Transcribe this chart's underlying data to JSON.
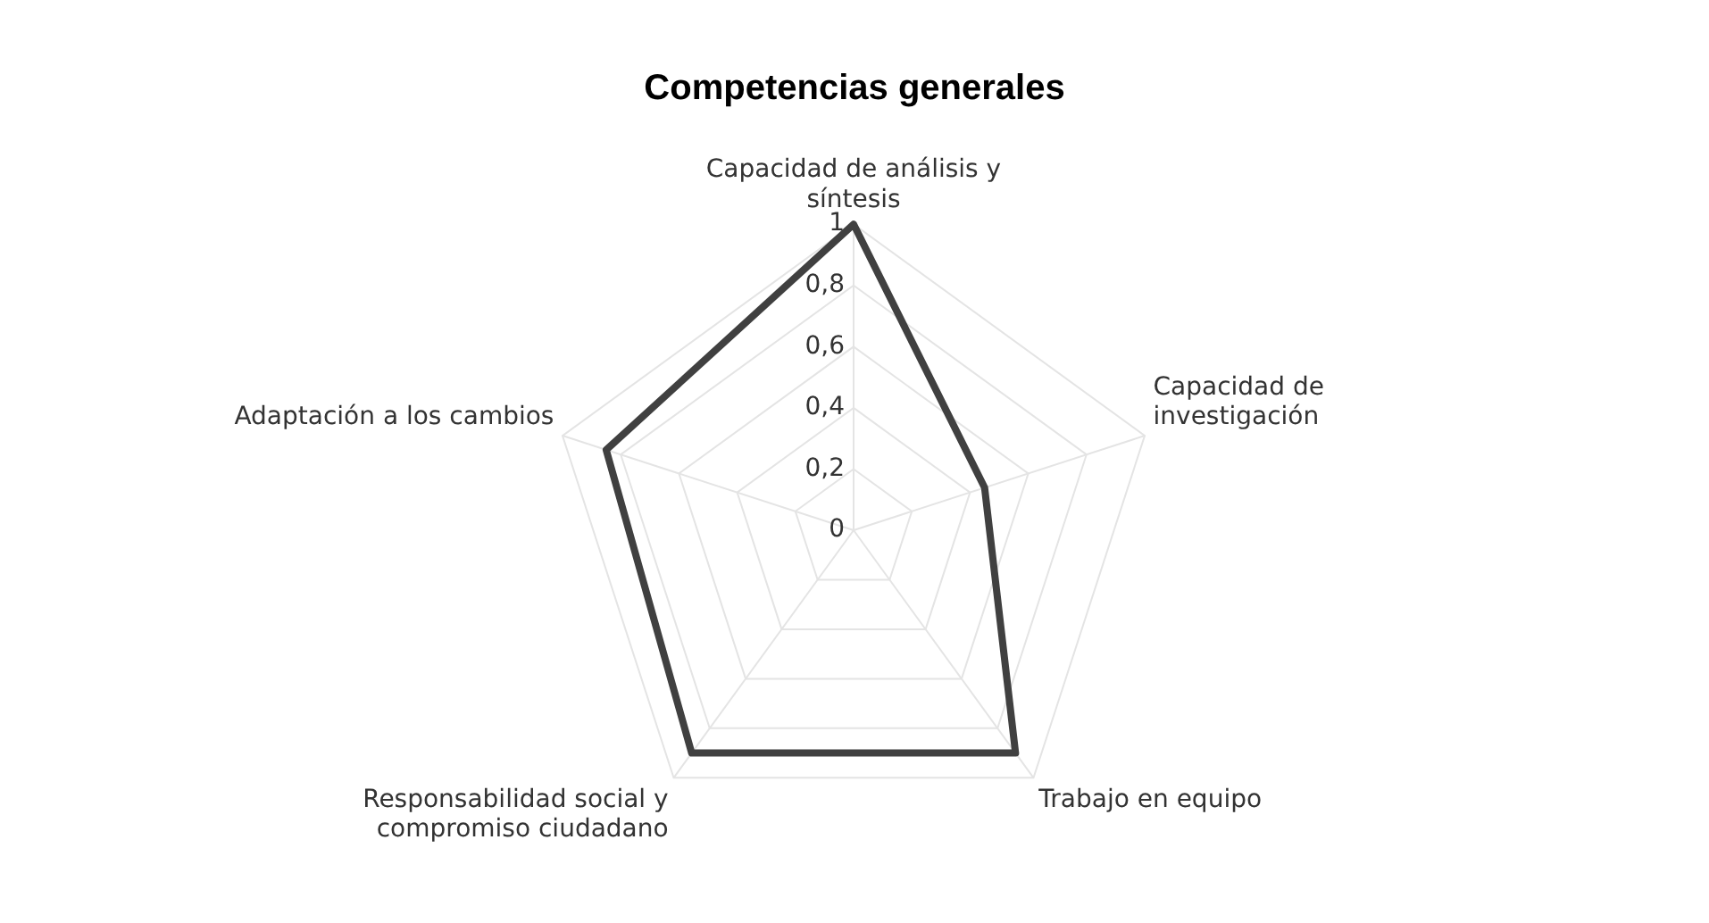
{
  "chart_data": {
    "type": "radar",
    "title": "Competencias generales",
    "categories": [
      "Capacidad de análisis y síntesis",
      "Capacidad de investigación",
      "Trabajo en equipo",
      "Responsabilidad social y compromiso ciudadano",
      "Adaptación a los cambios"
    ],
    "series": [
      {
        "color": "#404040",
        "values": [
          1,
          0.45,
          0.9,
          0.9,
          0.85
        ]
      }
    ],
    "ylim": [
      0,
      1
    ],
    "yticks": [
      0,
      {
        "value": 0.2,
        "label": "0,2"
      },
      {
        "value": 0.4,
        "label": "0,4"
      },
      {
        "value": 0.6,
        "label": "0,6"
      },
      {
        "value": 0.8,
        "label": "0,8"
      },
      1
    ],
    "grid": true,
    "legend": false,
    "marker": "none"
  }
}
